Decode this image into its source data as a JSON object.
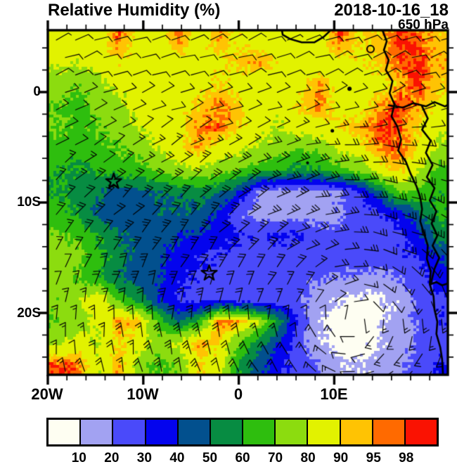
{
  "header": {
    "title": "Relative Humidity (%)",
    "datetime": "2018-10-16_18",
    "level": "650 hPa"
  },
  "chart_data": {
    "type": "heatmap",
    "title": "Relative Humidity (%)",
    "valid_datetime": "2018-10-16_18",
    "pressure_level": "650 hPa",
    "projection": "cylindrical lat-lon, Gulf of Guinea / SE Atlantic",
    "x_axis": {
      "tick_labels": [
        "20W",
        "10W",
        "0",
        "10E"
      ],
      "tick_lons": [
        -20,
        -10,
        0,
        10
      ],
      "minor_step_deg": 2,
      "range": [
        -20,
        21.9
      ]
    },
    "y_axis": {
      "tick_labels": [
        "0",
        "10S",
        "20S"
      ],
      "tick_lats": [
        0,
        -10,
        -20
      ],
      "minor_step_deg": 2,
      "range": [
        -25.6,
        5.6
      ]
    },
    "colorbar": {
      "units": "%",
      "levels": [
        10,
        20,
        30,
        40,
        50,
        60,
        70,
        80,
        90,
        95,
        98
      ],
      "colors": [
        "#FEFEF2",
        "#A2A2F2",
        "#4A4AFA",
        "#0404EE",
        "#02508E",
        "#078C42",
        "#2EBE0E",
        "#8CDC0F",
        "#E2F200",
        "#FFC303",
        "#FF6A00",
        "#FA1202"
      ]
    },
    "rh_grid": {
      "units": "%",
      "cols": 20,
      "rows": 16,
      "lon_start": -18.9,
      "lon_step": 2.1,
      "lat_start": 4.6,
      "lat_step": -1.95,
      "values": [
        [
          84,
          86,
          83,
          97,
          87,
          84,
          96,
          85,
          94,
          88,
          86,
          84,
          83,
          86,
          97,
          90,
          92,
          99,
          97,
          92
        ],
        [
          82,
          80,
          85,
          89,
          86,
          83,
          85,
          86,
          88,
          91,
          95,
          88,
          84,
          83,
          86,
          88,
          91,
          97,
          99,
          94
        ],
        [
          75,
          71,
          76,
          84,
          86,
          82,
          85,
          87,
          90,
          86,
          84,
          83,
          86,
          95,
          86,
          84,
          87,
          93,
          99,
          91
        ],
        [
          70,
          66,
          73,
          76,
          85,
          85,
          86,
          91,
          96,
          92,
          85,
          83,
          91,
          96,
          86,
          85,
          94,
          99,
          95,
          86
        ],
        [
          71,
          67,
          70,
          74,
          80,
          85,
          86,
          96,
          97,
          90,
          84,
          80,
          84,
          86,
          90,
          93,
          99,
          97,
          89,
          83
        ],
        [
          66,
          63,
          67,
          70,
          73,
          80,
          86,
          95,
          86,
          83,
          79,
          74,
          71,
          73,
          81,
          86,
          95,
          98,
          88,
          78
        ],
        [
          61,
          58,
          62,
          64,
          66,
          71,
          76,
          79,
          74,
          69,
          64,
          60,
          57,
          59,
          66,
          73,
          86,
          92,
          80,
          67
        ],
        [
          60,
          56,
          51,
          44,
          46,
          50,
          52,
          54,
          52,
          40,
          18,
          16,
          16,
          17,
          19,
          28,
          48,
          72,
          68,
          62
        ],
        [
          64,
          58,
          48,
          42,
          44,
          48,
          49,
          47,
          38,
          22,
          15,
          14,
          15,
          16,
          18,
          25,
          28,
          34,
          48,
          62
        ],
        [
          71,
          67,
          59,
          51,
          47,
          44,
          41,
          39,
          35,
          31,
          28,
          32,
          31,
          24,
          24,
          25,
          26,
          28,
          38,
          55
        ],
        [
          77,
          73,
          64,
          54,
          47,
          42,
          36,
          31,
          28,
          26,
          25,
          24,
          24,
          25,
          25,
          26,
          25,
          28,
          30,
          42
        ],
        [
          73,
          69,
          61,
          51,
          45,
          41,
          33,
          28,
          26,
          25,
          24,
          24,
          23,
          21,
          19,
          17,
          16,
          20,
          26,
          35
        ],
        [
          72,
          80,
          90,
          68,
          58,
          40,
          28,
          26,
          25,
          24,
          24,
          23,
          22,
          15,
          10,
          8,
          8,
          12,
          24,
          28
        ],
        [
          70,
          74,
          82,
          96,
          92,
          66,
          50,
          60,
          97,
          95,
          80,
          55,
          28,
          10,
          6,
          6,
          8,
          14,
          22,
          30
        ],
        [
          78,
          85,
          80,
          90,
          85,
          75,
          82,
          95,
          90,
          70,
          55,
          40,
          25,
          12,
          6,
          6,
          10,
          14,
          22,
          25
        ],
        [
          98,
          97,
          80,
          95,
          75,
          68,
          72,
          90,
          85,
          60,
          45,
          32,
          26,
          20,
          12,
          10,
          14,
          18,
          24,
          32
        ]
      ]
    },
    "markers": [
      {
        "symbol": "star",
        "lon": -13.1,
        "lat": -8.1
      },
      {
        "symbol": "star",
        "lon": -3.1,
        "lat": -16.4
      }
    ],
    "wind": {
      "style": "barbs",
      "units": "kt",
      "high_center": {
        "lon": 12.2,
        "lat": -20.6
      },
      "min_speed_kt": 4,
      "max_speed_kt": 26,
      "north_flow": {
        "from_deg": 70,
        "speed_kt": 9
      },
      "easterly_band": {
        "lat_center": -10.4,
        "speed_boost_kt": 8
      },
      "description": "Counterclockwise circulation around the South Atlantic subtropical high; 15-25 kt easterlies along the northern flank of the dry zone; light NE flow north of the equator; S-SE flow along the Angola coast"
    },
    "coastline": [
      [
        [
          4.5,
          5.7
        ],
        [
          4.6,
          5.2
        ],
        [
          5.4,
          4.8
        ],
        [
          6.6,
          4.5
        ],
        [
          7.9,
          4.5
        ],
        [
          8.9,
          5.0
        ],
        [
          9.5,
          5.5
        ],
        [
          9.6,
          5.7
        ]
      ],
      [
        [
          15.0,
          5.7
        ],
        [
          15.5,
          4.6
        ],
        [
          15.2,
          3.8
        ],
        [
          15.7,
          2.9
        ],
        [
          15.4,
          2.0
        ],
        [
          16.1,
          1.0
        ],
        [
          15.8,
          -0.1
        ],
        [
          16.3,
          -1.1
        ],
        [
          16.0,
          -2.2
        ],
        [
          16.6,
          -3.1
        ],
        [
          17.0,
          -4.3
        ],
        [
          16.7,
          -5.3
        ],
        [
          17.5,
          -6.3
        ],
        [
          18.0,
          -7.4
        ],
        [
          18.6,
          -8.5
        ],
        [
          19.0,
          -9.5
        ],
        [
          19.2,
          -10.6
        ],
        [
          19.0,
          -11.7
        ],
        [
          19.4,
          -12.8
        ],
        [
          19.8,
          -13.9
        ],
        [
          19.7,
          -15.1
        ],
        [
          20.1,
          -16.2
        ],
        [
          20.0,
          -17.4
        ],
        [
          20.4,
          -18.5
        ],
        [
          20.5,
          -19.7
        ],
        [
          20.8,
          -20.8
        ],
        [
          20.7,
          -21.9
        ],
        [
          21.1,
          -23.1
        ],
        [
          21.3,
          -24.2
        ],
        [
          21.4,
          -25.7
        ]
      ]
    ],
    "borders": [
      [
        [
          15.7,
          -1.2
        ],
        [
          17.2,
          -1.4
        ],
        [
          18.3,
          -1.0
        ],
        [
          19.6,
          -1.3
        ],
        [
          20.5,
          -0.9
        ],
        [
          21.6,
          -1.3
        ],
        [
          22.0,
          -1.1
        ]
      ],
      [
        [
          19.2,
          -1.3
        ],
        [
          19.8,
          -2.4
        ],
        [
          19.2,
          -3.4
        ],
        [
          20.1,
          -4.4
        ],
        [
          19.6,
          -5.5
        ],
        [
          20.3,
          -6.6
        ],
        [
          19.7,
          -7.7
        ],
        [
          20.5,
          -8.7
        ],
        [
          20.0,
          -9.8
        ],
        [
          20.7,
          -10.8
        ],
        [
          20.2,
          -11.9
        ],
        [
          20.8,
          -13.0
        ],
        [
          20.3,
          -13.9
        ],
        [
          21.0,
          -15.0
        ],
        [
          20.5,
          -16.0
        ],
        [
          20.1,
          -17.4
        ]
      ],
      [
        [
          20.1,
          -17.4
        ],
        [
          20.7,
          -17.2
        ],
        [
          21.3,
          -17.5
        ],
        [
          22.0,
          -17.3
        ]
      ]
    ],
    "islands": [
      {
        "lon": 13.8,
        "lat": 3.9,
        "r": 5
      },
      {
        "lon": 11.6,
        "lat": 0.3,
        "r": 3
      },
      {
        "lon": 9.8,
        "lat": -3.5,
        "r": 2.5
      },
      {
        "lon": 7.2,
        "lat": -6.4,
        "r": 2
      }
    ]
  }
}
